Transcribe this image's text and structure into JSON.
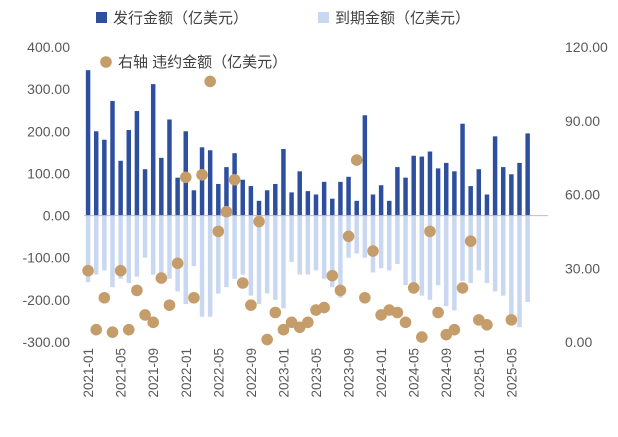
{
  "chart_data": {
    "type": "bar",
    "x_tick_labels": [
      "2021-01",
      "2021-05",
      "2021-09",
      "2022-01",
      "2022-05",
      "2022-09",
      "2023-01",
      "2023-05",
      "2023-09",
      "2024-01",
      "2024-05",
      "2024-09",
      "2025-01",
      "2025-05"
    ],
    "x": [
      "2021-01",
      "2021-02",
      "2021-03",
      "2021-04",
      "2021-05",
      "2021-06",
      "2021-07",
      "2021-08",
      "2021-09",
      "2021-10",
      "2021-11",
      "2021-12",
      "2022-01",
      "2022-02",
      "2022-03",
      "2022-04",
      "2022-05",
      "2022-06",
      "2022-07",
      "2022-08",
      "2022-09",
      "2022-10",
      "2022-11",
      "2022-12",
      "2023-01",
      "2023-02",
      "2023-03",
      "2023-04",
      "2023-05",
      "2023-06",
      "2023-07",
      "2023-08",
      "2023-09",
      "2023-10",
      "2023-11",
      "2023-12",
      "2024-01",
      "2024-02",
      "2024-03",
      "2024-04",
      "2024-05",
      "2024-06",
      "2024-07",
      "2024-08",
      "2024-09",
      "2024-10",
      "2024-11",
      "2024-12",
      "2025-01",
      "2025-02",
      "2025-03",
      "2025-04",
      "2025-05",
      "2025-06",
      "2025-07",
      "2025-08",
      "2025-09"
    ],
    "left_axis": {
      "ylim": [
        -300,
        400
      ],
      "ticks": [
        "-300.00",
        "-200.00",
        "-100.00",
        "0.00",
        "100.00",
        "200.00",
        "300.00",
        "400.00"
      ]
    },
    "right_axis": {
      "ylim": [
        0,
        120
      ],
      "ticks": [
        "0.00",
        "30.00",
        "60.00",
        "90.00",
        "120.00"
      ]
    },
    "series": [
      {
        "name": "发行金额（亿美元）",
        "type": "bar",
        "axis": "left",
        "color": "#2E4F9E",
        "values": [
          345,
          200,
          180,
          272,
          130,
          203,
          248,
          110,
          312,
          137,
          228,
          90,
          200,
          60,
          162,
          155,
          75,
          115,
          148,
          85,
          70,
          35,
          60,
          75,
          158,
          55,
          105,
          58,
          50,
          80,
          40,
          80,
          92,
          35,
          238,
          50,
          72,
          35,
          115,
          90,
          142,
          140,
          152,
          112,
          125,
          105,
          218,
          70,
          110,
          50,
          188,
          115,
          98,
          125,
          195,
          0,
          0
        ]
      },
      {
        "name": "到期金额（亿美元）",
        "type": "bar",
        "axis": "left",
        "color": "#C9D8F0",
        "values": [
          -158,
          -140,
          -130,
          -170,
          -150,
          -160,
          -145,
          -100,
          -140,
          -135,
          -150,
          -180,
          -210,
          -120,
          -240,
          -240,
          -185,
          -170,
          -150,
          -140,
          -190,
          -210,
          -185,
          -200,
          -220,
          -110,
          -140,
          -140,
          -130,
          -150,
          -170,
          -195,
          -100,
          -90,
          -100,
          -135,
          -125,
          -130,
          -115,
          -165,
          -185,
          -190,
          -200,
          -165,
          -215,
          -225,
          -155,
          -160,
          -130,
          -160,
          -180,
          -190,
          -240,
          -265,
          -205,
          0,
          0
        ]
      },
      {
        "name": "右轴 违约金额（亿美元）",
        "type": "scatter",
        "axis": "right",
        "color": "#C59D6A",
        "values": [
          29,
          5,
          18,
          4,
          29,
          5,
          21,
          11,
          8,
          26,
          15,
          32,
          67,
          18,
          68,
          106,
          45,
          53,
          66,
          24,
          15,
          49,
          1,
          12,
          5,
          8,
          6,
          8,
          13,
          14,
          27,
          21,
          43,
          74,
          18,
          37,
          11,
          13,
          12,
          8,
          22,
          2,
          45,
          12,
          3,
          5,
          22,
          41,
          9,
          7,
          null,
          null,
          9,
          null,
          null,
          null,
          null
        ]
      }
    ],
    "legend": [
      "发行金额（亿美元）",
      "到期金额（亿美元）",
      "右轴 违约金额（亿美元）"
    ]
  }
}
